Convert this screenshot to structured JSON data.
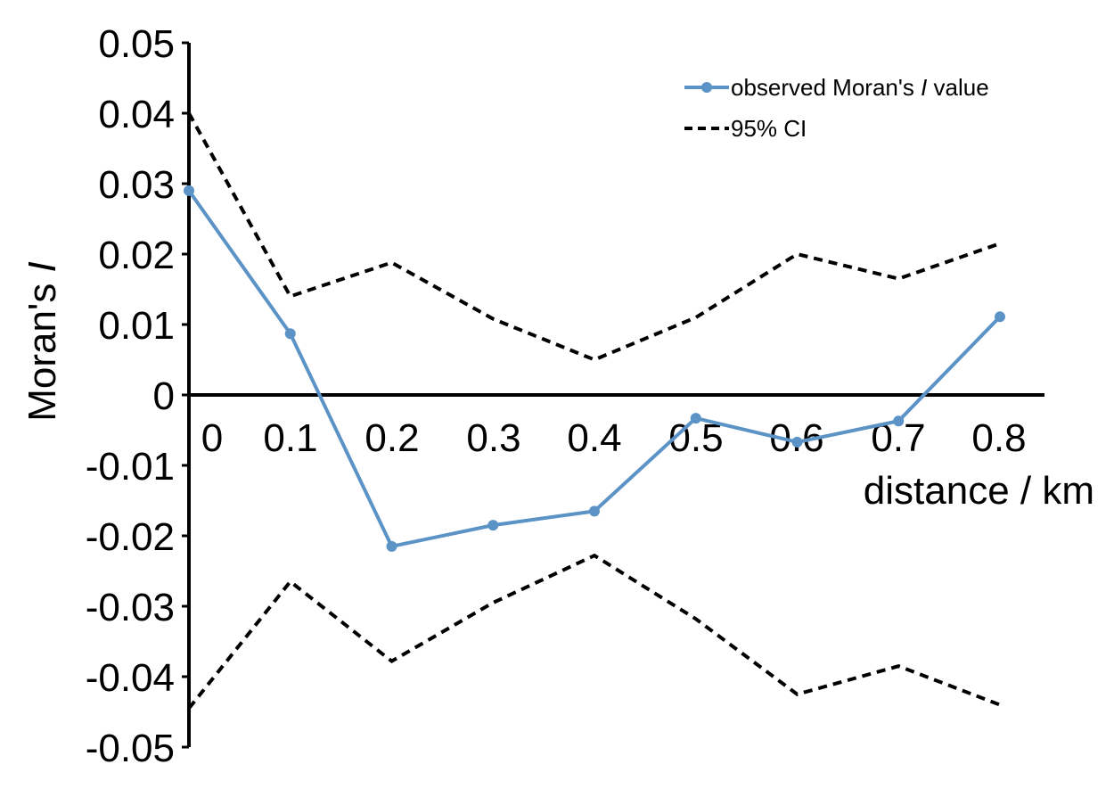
{
  "chart_data": {
    "type": "line",
    "xlabel": "distance / km",
    "ylabel_prefix": "Moran's ",
    "ylabel_italic": "I",
    "x": [
      0,
      0.1,
      0.2,
      0.3,
      0.4,
      0.5,
      0.6,
      0.7,
      0.8
    ],
    "x_tick_labels": [
      "0",
      "0.1",
      "0.2",
      "0.3",
      "0.4",
      "0.5",
      "0.6",
      "0.7",
      "0.8"
    ],
    "y_tick_labels": [
      "0.05",
      "0.04",
      "0.03",
      "0.02",
      "0.01",
      "0",
      "-0.01",
      "-0.02",
      "-0.03",
      "-0.04",
      "-0.05"
    ],
    "y_ticks": [
      0.05,
      0.04,
      0.03,
      0.02,
      0.01,
      0,
      -0.01,
      -0.02,
      -0.03,
      -0.04,
      -0.05
    ],
    "xlim": [
      0,
      0.82
    ],
    "ylim": [
      -0.05,
      0.05
    ],
    "grid": false,
    "legend_position": "top-right",
    "series": [
      {
        "name_prefix": "observed Moran's ",
        "name_italic": "I",
        "name_suffix": " value",
        "color": "#5b93c7",
        "style": "solid-markers",
        "values": [
          0.029,
          0.0087,
          -0.0215,
          -0.0185,
          -0.0165,
          -0.0033,
          -0.0067,
          -0.0037,
          0.0111
        ]
      },
      {
        "name": "95% CI",
        "color": "#000000",
        "style": "dashed",
        "upper": [
          0.04,
          0.014,
          0.0188,
          0.0108,
          0.005,
          0.011,
          0.02,
          0.0165,
          0.0215
        ],
        "lower": [
          -0.0445,
          -0.0265,
          -0.0378,
          -0.0295,
          -0.0228,
          -0.0318,
          -0.0425,
          -0.0385,
          -0.044
        ]
      }
    ]
  }
}
